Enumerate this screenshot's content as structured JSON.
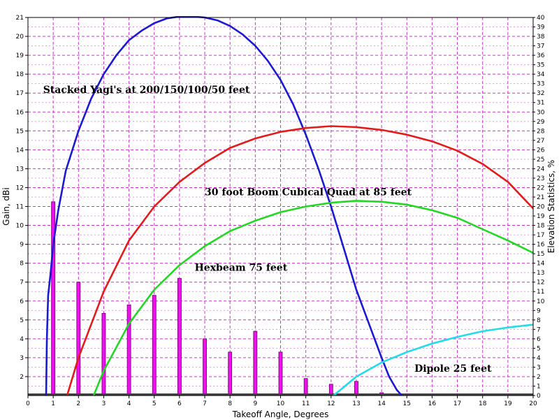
{
  "chart_data": {
    "type": "line",
    "title": "",
    "xlabel": "Takeoff Angle, Degrees",
    "ylabel": "Gain, dBi",
    "y2label": "Elevation Statistics, %",
    "xlim": [
      0,
      20
    ],
    "ylim": [
      1,
      21
    ],
    "y2lim": [
      0,
      40
    ],
    "x_ticks": [
      "0",
      "1",
      "2",
      "3",
      "4",
      "5",
      "6",
      "7",
      "8",
      "9",
      "10",
      "11",
      "12",
      "13",
      "14",
      "15",
      "16",
      "17",
      "18",
      "19",
      "20"
    ],
    "y_ticks": [
      "2",
      "3",
      "4",
      "5",
      "6",
      "7",
      "8",
      "9",
      "10",
      "11",
      "12",
      "13",
      "14",
      "15",
      "16",
      "17",
      "18",
      "19",
      "20",
      "21"
    ],
    "y2_ticks": [
      "0",
      "1",
      "2",
      "3",
      "4",
      "5",
      "6",
      "7",
      "8",
      "9",
      "10",
      "11",
      "12",
      "13",
      "14",
      "15",
      "16",
      "17",
      "18",
      "19",
      "20",
      "21",
      "22",
      "23",
      "24",
      "25",
      "26",
      "27",
      "28",
      "29",
      "30",
      "31",
      "32",
      "33",
      "34",
      "35",
      "36",
      "37",
      "38",
      "39",
      "40"
    ],
    "grid": true,
    "colors": {
      "grid_major": "#cc33cc",
      "grid_minor": "#e09be0",
      "bars": "#ee11ee",
      "bar_outline": "#660066",
      "baseline": "#444444"
    },
    "series": [
      {
        "label": "Stacked Yagi's at 200/150/100/50 feet",
        "color": "#1a1ad0",
        "x": [
          0.72,
          0.75,
          0.8,
          0.9,
          1.0,
          1.2,
          1.5,
          2.0,
          2.5,
          3.0,
          3.5,
          4.0,
          4.5,
          5.0,
          5.5,
          6.0,
          6.5,
          7.0,
          7.5,
          8.0,
          8.5,
          9.0,
          9.5,
          10.0,
          10.5,
          11.0,
          11.5,
          12.0,
          12.5,
          13.0,
          13.5,
          14.0,
          14.3,
          14.6,
          14.8,
          14.9
        ],
        "y": [
          1.0,
          4.0,
          6.3,
          7.5,
          9.0,
          10.8,
          12.9,
          15.0,
          16.7,
          18.0,
          19.0,
          19.8,
          20.3,
          20.7,
          20.95,
          21.05,
          21.05,
          21.0,
          20.85,
          20.55,
          20.1,
          19.5,
          18.7,
          17.7,
          16.4,
          14.8,
          13.0,
          11.0,
          8.8,
          6.6,
          4.8,
          3.0,
          2.0,
          1.3,
          1.0,
          0.9
        ]
      },
      {
        "label": "30 foot Boom Cubical Quad at 85 feet",
        "color": "#e31b1b",
        "x": [
          1.55,
          2.0,
          3.0,
          4.0,
          5.0,
          6.0,
          7.0,
          8.0,
          9.0,
          10.0,
          11.0,
          12.0,
          13.0,
          14.0,
          15.0,
          16.0,
          17.0,
          18.0,
          19.0,
          20.0
        ],
        "y": [
          1.0,
          3.0,
          6.5,
          9.2,
          11.0,
          12.3,
          13.3,
          14.1,
          14.6,
          14.95,
          15.15,
          15.25,
          15.2,
          15.05,
          14.8,
          14.45,
          13.95,
          13.25,
          12.3,
          10.9
        ]
      },
      {
        "label": "Hexbeam 75 feet",
        "color": "#22d822",
        "x": [
          2.6,
          3.0,
          4.0,
          5.0,
          6.0,
          7.0,
          8.0,
          9.0,
          10.0,
          11.0,
          12.0,
          13.0,
          14.0,
          15.0,
          16.0,
          17.0,
          18.0,
          19.0,
          20.0
        ],
        "y": [
          1.0,
          2.3,
          4.8,
          6.6,
          7.9,
          8.9,
          9.7,
          10.25,
          10.7,
          11.0,
          11.2,
          11.3,
          11.25,
          11.1,
          10.8,
          10.4,
          9.8,
          9.2,
          8.55
        ]
      },
      {
        "label": "Dipole 25 feet",
        "color": "#22dcea",
        "x": [
          12.1,
          13.0,
          14.0,
          15.0,
          16.0,
          17.0,
          18.0,
          19.0,
          20.0
        ],
        "y": [
          1.0,
          2.0,
          2.75,
          3.3,
          3.75,
          4.1,
          4.4,
          4.6,
          4.75
        ]
      }
    ],
    "bars": {
      "axis": "y2",
      "x": [
        1,
        2,
        3,
        4,
        5,
        6,
        7,
        8,
        9,
        10,
        11,
        12,
        13,
        14
      ],
      "values": [
        20.5,
        12.0,
        8.7,
        9.6,
        10.6,
        12.4,
        6.0,
        4.6,
        6.8,
        4.6,
        1.8,
        1.2,
        1.5,
        0.3
      ]
    },
    "annotations": [
      {
        "text": "Stacked Yagi's at 200/150/100/50 feet",
        "x": 0.6,
        "y": 17.0
      },
      {
        "text": "30 foot Boom Cubical Quad at 85 feet",
        "x": 7.0,
        "y": 11.6
      },
      {
        "text": "Hexbeam 75 feet",
        "x": 6.6,
        "y": 7.6
      },
      {
        "text": "Dipole 25 feet",
        "x": 15.3,
        "y": 2.25
      }
    ]
  }
}
